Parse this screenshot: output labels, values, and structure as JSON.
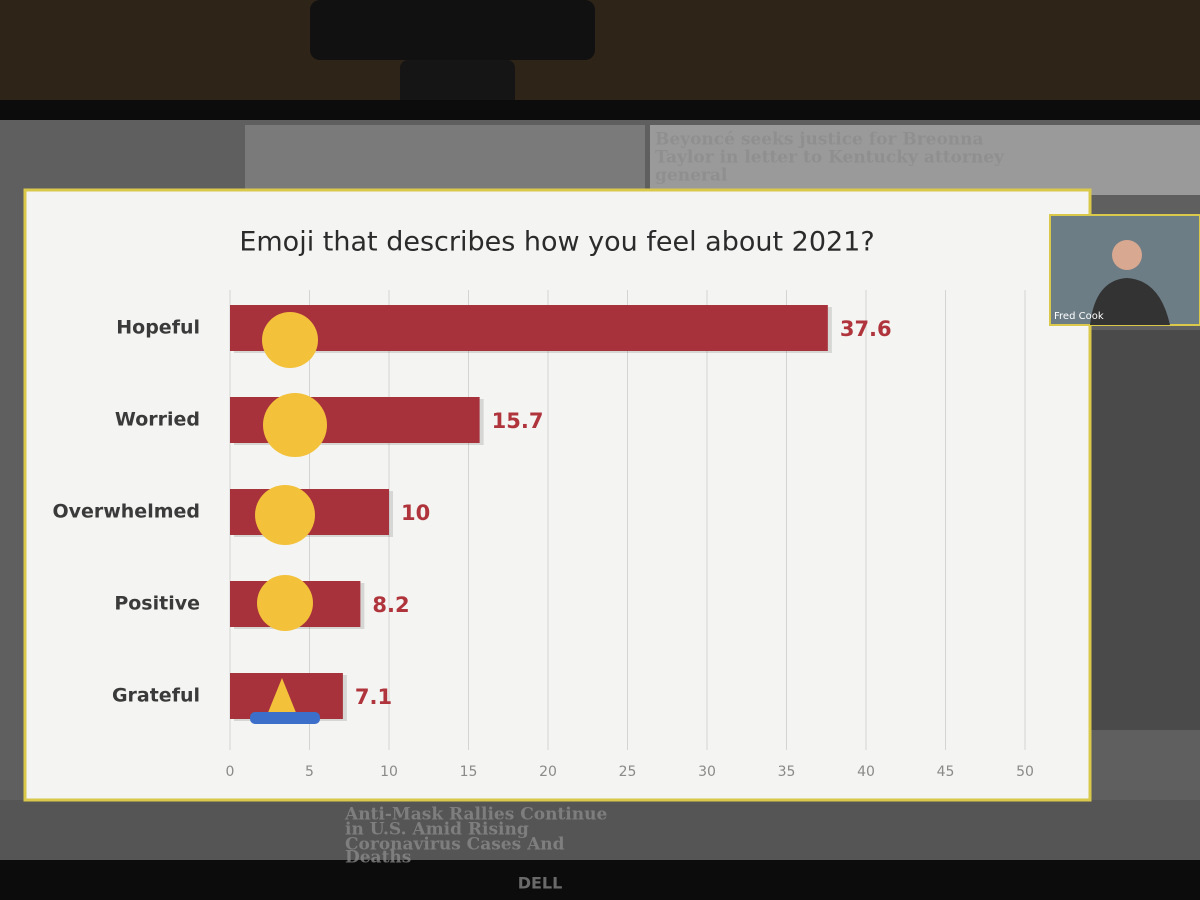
{
  "chart_data": {
    "type": "bar",
    "orientation": "horizontal",
    "title": "Emoji that describes how you feel about 2021?",
    "categories": [
      "Hopeful",
      "Worried",
      "Overwhelmed",
      "Positive",
      "Grateful"
    ],
    "values": [
      37.6,
      15.7,
      10,
      8.2,
      7.1
    ],
    "color": "#a8323c",
    "xlim": [
      0,
      50
    ],
    "xticks": [
      0,
      5,
      10,
      15,
      20,
      25,
      30,
      35,
      40,
      45,
      50
    ],
    "grid": true
  },
  "video_tile": {
    "name": "Fred Cook"
  },
  "background_headlines": [
    "Beyoncé seeks justice for Breonna",
    "Taylor in letter to Kentucky attorney",
    "general",
    "Anti-Mask Rallies Continue",
    "in U.S. Amid Rising",
    "Coronavirus Cases And",
    "Deaths"
  ],
  "monitor_brand": "DELL"
}
